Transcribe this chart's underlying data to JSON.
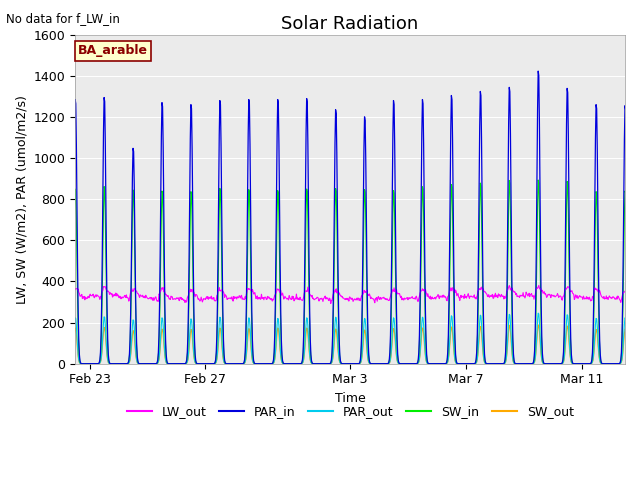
{
  "title": "Solar Radiation",
  "top_left_note": "No data for f_LW_in",
  "legend_label": "BA_arable",
  "xlabel": "Time",
  "ylabel": "LW, SW (W/m2), PAR (umol/m2/s)",
  "ylim": [
    0,
    1600
  ],
  "yticks": [
    0,
    200,
    400,
    600,
    800,
    1000,
    1200,
    1400,
    1600
  ],
  "xtick_labels": [
    "Feb 23",
    "Feb 27",
    "Mar 3",
    "Mar 7",
    "Mar 11"
  ],
  "series_colors": {
    "LW_out": "#ff00ff",
    "PAR_in": "#0000dd",
    "PAR_out": "#00ccee",
    "SW_in": "#00ee00",
    "SW_out": "#ffaa00"
  },
  "background_color": "#ebebeb",
  "legend_box_facecolor": "#ffffcc",
  "legend_box_edgecolor": "#8B0000",
  "figsize": [
    6.4,
    4.8
  ],
  "dpi": 100,
  "title_fontsize": 13,
  "axis_label_fontsize": 9,
  "tick_fontsize": 9
}
